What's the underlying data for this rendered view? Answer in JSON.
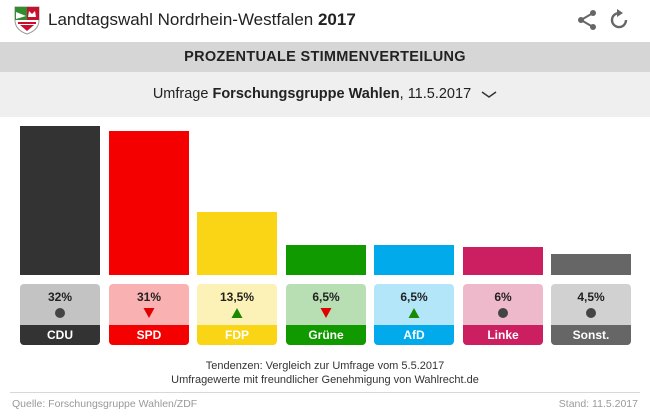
{
  "header": {
    "title": "Landtagswahl Nordrhein-Westfalen",
    "year": "2017"
  },
  "subheader": {
    "label": "PROZENTUALE STIMMENVERTEILUNG"
  },
  "selector": {
    "prefix": "Umfrage",
    "institute": "Forschungsgruppe Wahlen",
    "date": ", 11.5.2017"
  },
  "chart_data": {
    "type": "bar",
    "title": "Prozentuale Stimmenverteilung",
    "ylim": [
      0,
      32
    ],
    "categories": [
      "CDU",
      "SPD",
      "FDP",
      "Grüne",
      "AfD",
      "Linke",
      "Sonst."
    ],
    "values": [
      32,
      31,
      13.5,
      6.5,
      6.5,
      6,
      4.5
    ],
    "value_labels": [
      "32%",
      "31%",
      "13,5%",
      "6,5%",
      "6,5%",
      "6%",
      "4,5%"
    ],
    "trends": [
      "neutral",
      "down",
      "up",
      "down",
      "up",
      "neutral",
      "neutral"
    ],
    "bar_colors": [
      "#333333",
      "#f50000",
      "#f9d516",
      "#119a00",
      "#00aaeb",
      "#cc1f62",
      "#666666"
    ],
    "card_colors": [
      "#c3c3c3",
      "#f9b1b1",
      "#fcf2b8",
      "#b7dfb3",
      "#b3e6f9",
      "#efb9cc",
      "#d1d1d1"
    ],
    "label_text_colors": [
      "#ffffff",
      "#ffffff",
      "#ffffff",
      "#ffffff",
      "#ffffff",
      "#ffffff",
      "#ffffff"
    ]
  },
  "colors": {
    "trend_up": "#1a8a00",
    "trend_down": "#e00000",
    "trend_neutral": "#444444"
  },
  "notes": {
    "line1": "Tendenzen: Vergleich zur Umfrage vom 5.5.2017",
    "line2": "Umfragewerte mit freundlicher Genehmigung von Wahlrecht.de"
  },
  "footer": {
    "source": "Quelle: Forschungsgruppe Wahlen/ZDF",
    "stand": "Stand: 11.5.2017"
  }
}
